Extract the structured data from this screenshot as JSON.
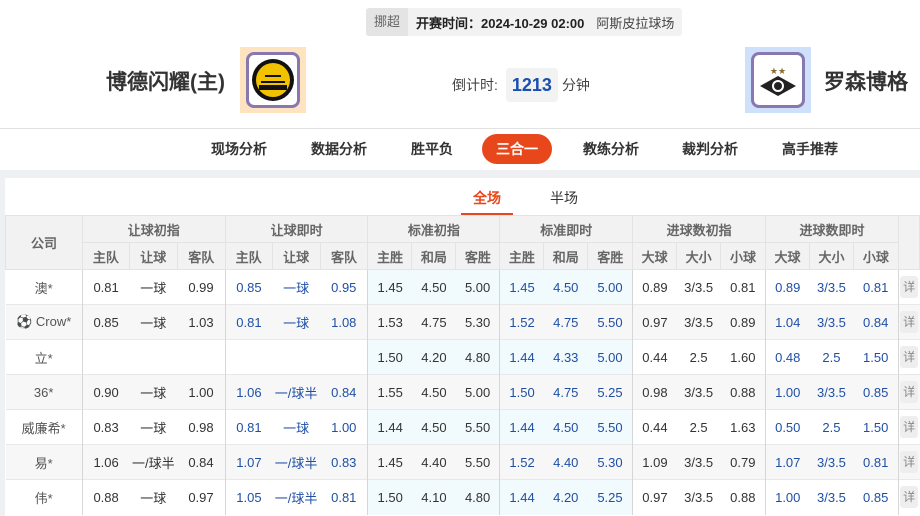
{
  "match": {
    "league": "挪超",
    "time_label": "开赛时间：2024-10-29 02:00",
    "venue": "阿斯皮拉球场",
    "home": "博德闪耀(主)",
    "away": "罗森博格",
    "countdown_label": "倒计时:",
    "countdown": "1213",
    "countdown_unit": "分钟"
  },
  "nav": [
    "现场分析",
    "数据分析",
    "胜平负",
    "三合一",
    "教练分析",
    "裁判分析",
    "高手推荐"
  ],
  "nav_active": "三合一",
  "subtabs": [
    "全场",
    "半场"
  ],
  "table": {
    "company_header": "公司",
    "groups": [
      "让球初指",
      "让球即时",
      "标准初指",
      "标准即时",
      "进球数初指",
      "进球数即时"
    ],
    "subheaders": [
      "主队",
      "让球",
      "客队",
      "主队",
      "让球",
      "客队",
      "主胜",
      "和局",
      "客胜",
      "主胜",
      "和局",
      "客胜",
      "大球",
      "大小",
      "小球",
      "大球",
      "大小",
      "小球"
    ],
    "detail_label": "详",
    "rows": [
      {
        "company": "澳*",
        "cells": [
          "0.81",
          "一球",
          "0.99",
          "0.85",
          "一球",
          "0.95",
          "1.45",
          "4.50",
          "5.00",
          "1.45",
          "4.50",
          "5.00",
          "0.89",
          "3/3.5",
          "0.81",
          "0.89",
          "3/3.5",
          "0.81"
        ]
      },
      {
        "company": "Crow*",
        "icon": "soccer-ball-icon",
        "cells": [
          "0.85",
          "一球",
          "1.03",
          "0.81",
          "一球",
          "1.08",
          "1.53",
          "4.75",
          "5.30",
          "1.52",
          "4.75",
          "5.50",
          "0.97",
          "3/3.5",
          "0.89",
          "1.04",
          "3/3.5",
          "0.84"
        ]
      },
      {
        "company": "立*",
        "cells": [
          "",
          "",
          "",
          "",
          "",
          "",
          "1.50",
          "4.20",
          "4.80",
          "1.44",
          "4.33",
          "5.00",
          "0.44",
          "2.5",
          "1.60",
          "0.48",
          "2.5",
          "1.50"
        ]
      },
      {
        "company": "36*",
        "cells": [
          "0.90",
          "一球",
          "1.00",
          "1.06",
          "一/球半",
          "0.84",
          "1.55",
          "4.50",
          "5.00",
          "1.50",
          "4.75",
          "5.25",
          "0.98",
          "3/3.5",
          "0.88",
          "1.00",
          "3/3.5",
          "0.85"
        ]
      },
      {
        "company": "威廉希*",
        "cells": [
          "0.83",
          "一球",
          "0.98",
          "0.81",
          "一球",
          "1.00",
          "1.44",
          "4.50",
          "5.50",
          "1.44",
          "4.50",
          "5.50",
          "0.44",
          "2.5",
          "1.63",
          "0.50",
          "2.5",
          "1.50"
        ]
      },
      {
        "company": "易*",
        "cells": [
          "1.06",
          "一/球半",
          "0.84",
          "1.07",
          "一/球半",
          "0.83",
          "1.45",
          "4.40",
          "5.50",
          "1.52",
          "4.40",
          "5.30",
          "1.09",
          "3/3.5",
          "0.79",
          "1.07",
          "3/3.5",
          "0.81"
        ]
      },
      {
        "company": "伟*",
        "cells": [
          "0.88",
          "一球",
          "0.97",
          "1.05",
          "一/球半",
          "0.81",
          "1.50",
          "4.10",
          "4.80",
          "1.44",
          "4.20",
          "5.25",
          "0.97",
          "3/3.5",
          "0.88",
          "1.00",
          "3/3.5",
          "0.85"
        ]
      }
    ]
  },
  "colors": {
    "accent": "#e8471b",
    "live_value": "#1f4fa5",
    "std_bg": "#f1fbfd"
  }
}
